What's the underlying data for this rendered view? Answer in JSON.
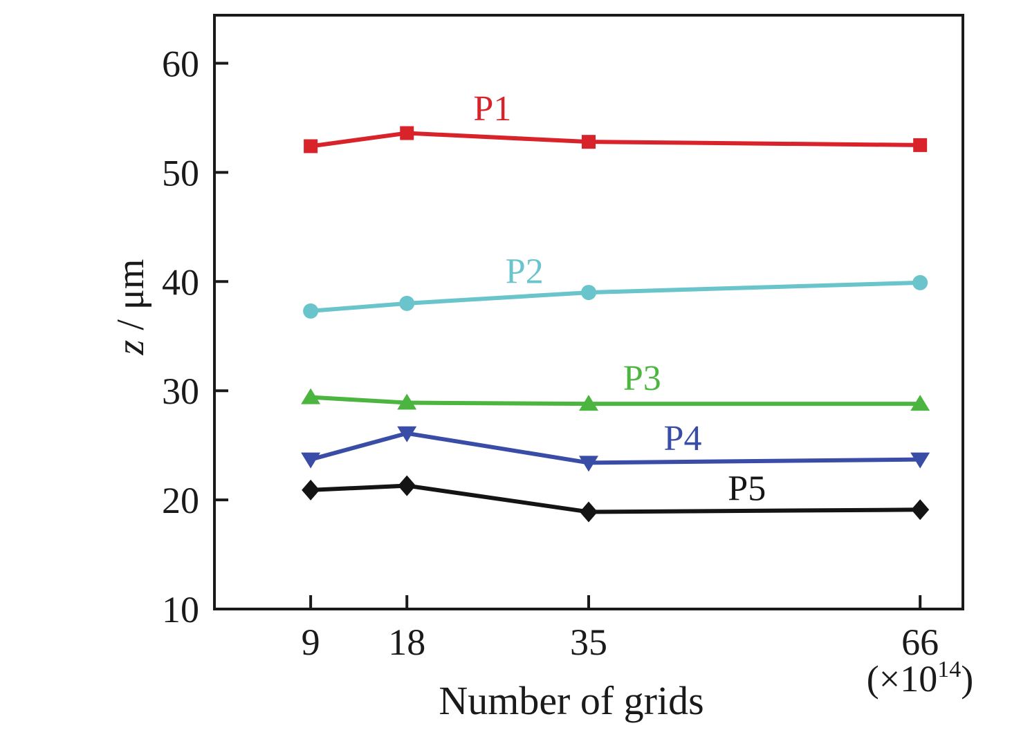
{
  "chart_data": {
    "type": "line",
    "title": "",
    "xlabel": "Number of grids",
    "ylabel": {
      "italic": "z",
      "rest": " / μm"
    },
    "x_scale_annotation": {
      "prefix": "(×10",
      "exponent": "14",
      "suffix": ")"
    },
    "x": [
      9,
      18,
      35,
      66
    ],
    "xticks": [
      9,
      18,
      35,
      66
    ],
    "yticks": [
      10,
      20,
      30,
      40,
      50,
      60
    ],
    "xlim": [
      0,
      70
    ],
    "ylim": [
      10,
      64.4
    ],
    "grid": false,
    "legend": "inline series labels",
    "background": "#ffffff",
    "axis_color": "#1a1a1a",
    "series": [
      {
        "name": "P1",
        "color": "#d8232b",
        "marker": "square",
        "values": [
          52.4,
          53.6,
          52.8,
          52.5
        ],
        "label_pos": [
          26.0,
          55.9
        ]
      },
      {
        "name": "P2",
        "color": "#6ac4cb",
        "marker": "circle",
        "values": [
          37.3,
          38.0,
          39.0,
          39.9
        ],
        "label_pos": [
          29.0,
          41.0
        ]
      },
      {
        "name": "P3",
        "color": "#4cb540",
        "marker": "triangle-up",
        "values": [
          29.4,
          28.9,
          28.8,
          28.8
        ],
        "label_pos": [
          40.0,
          31.2
        ]
      },
      {
        "name": "P4",
        "color": "#3a4da6",
        "marker": "triangle-down",
        "values": [
          23.7,
          26.1,
          23.4,
          23.7
        ],
        "label_pos": [
          43.8,
          25.7
        ]
      },
      {
        "name": "P5",
        "color": "#141414",
        "marker": "diamond",
        "values": [
          20.9,
          21.3,
          18.9,
          19.1
        ],
        "label_pos": [
          49.8,
          21.1
        ]
      }
    ]
  }
}
